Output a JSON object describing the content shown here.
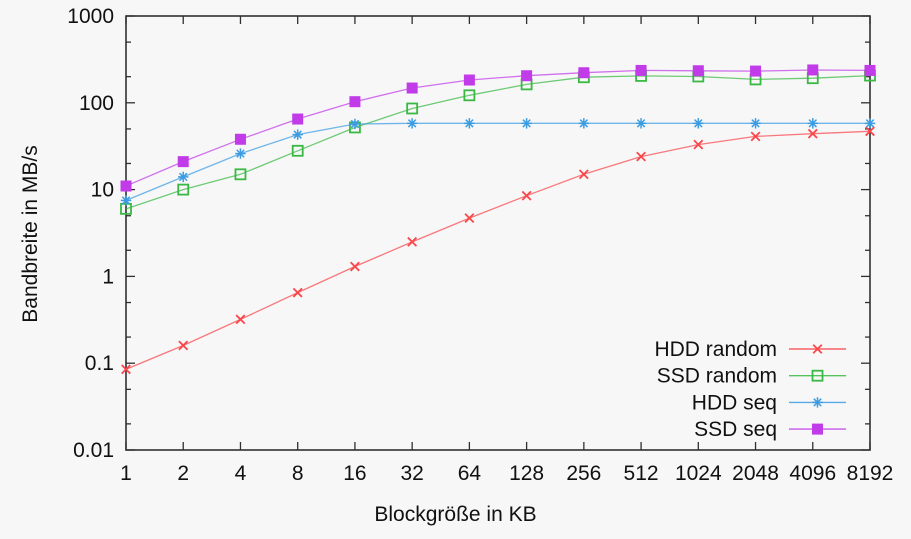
{
  "app": {
    "background": "#f7f7f8",
    "axis_color": "#303030",
    "text_color": "#111111"
  },
  "chart_data": {
    "type": "line",
    "title": "",
    "xlabel": "Blockgröße in KB",
    "ylabel": "Bandbreite in MB/s",
    "x_scale": "log2",
    "y_scale": "log10",
    "ylim": [
      0.01,
      1000
    ],
    "grid": false,
    "legend_position": "bottom-right-inside",
    "x_categories": [
      1,
      2,
      4,
      8,
      16,
      32,
      64,
      128,
      256,
      512,
      1024,
      2048,
      4096,
      8192
    ],
    "x_tick_labels": [
      "1",
      "2",
      "4",
      "8",
      "16",
      "32",
      "64",
      "128",
      "256",
      "512",
      "1024",
      "2048",
      "4096",
      "8192"
    ],
    "y_tick_labels": [
      "0.01",
      "0.1",
      "1",
      "10",
      "100",
      "1000"
    ],
    "y_ticks_major": [
      0.01,
      0.1,
      1,
      10,
      100,
      1000
    ],
    "y_minor_multiples": [
      2,
      5
    ],
    "series": [
      {
        "name": "HDD random",
        "marker": "cross",
        "color": "#f9474b",
        "values": [
          0.085,
          0.16,
          0.32,
          0.65,
          1.3,
          2.5,
          4.7,
          8.5,
          15,
          24,
          33,
          41,
          44,
          47
        ]
      },
      {
        "name": "SSD random",
        "marker": "open-square",
        "color": "#39b943",
        "values": [
          6,
          10,
          15,
          28,
          52,
          86,
          122,
          163,
          197,
          204,
          201,
          186,
          192,
          206
        ]
      },
      {
        "name": "HDD seq",
        "marker": "asterisk",
        "color": "#3b9ce2",
        "values": [
          7.5,
          14,
          26,
          43,
          57,
          58,
          58,
          58,
          58,
          58,
          58,
          58,
          58,
          58
        ]
      },
      {
        "name": "SSD seq",
        "marker": "filled-square",
        "color": "#c13ce8",
        "values": [
          11,
          21,
          38,
          65,
          103,
          148,
          183,
          205,
          222,
          236,
          234,
          232,
          239,
          236
        ]
      }
    ]
  }
}
